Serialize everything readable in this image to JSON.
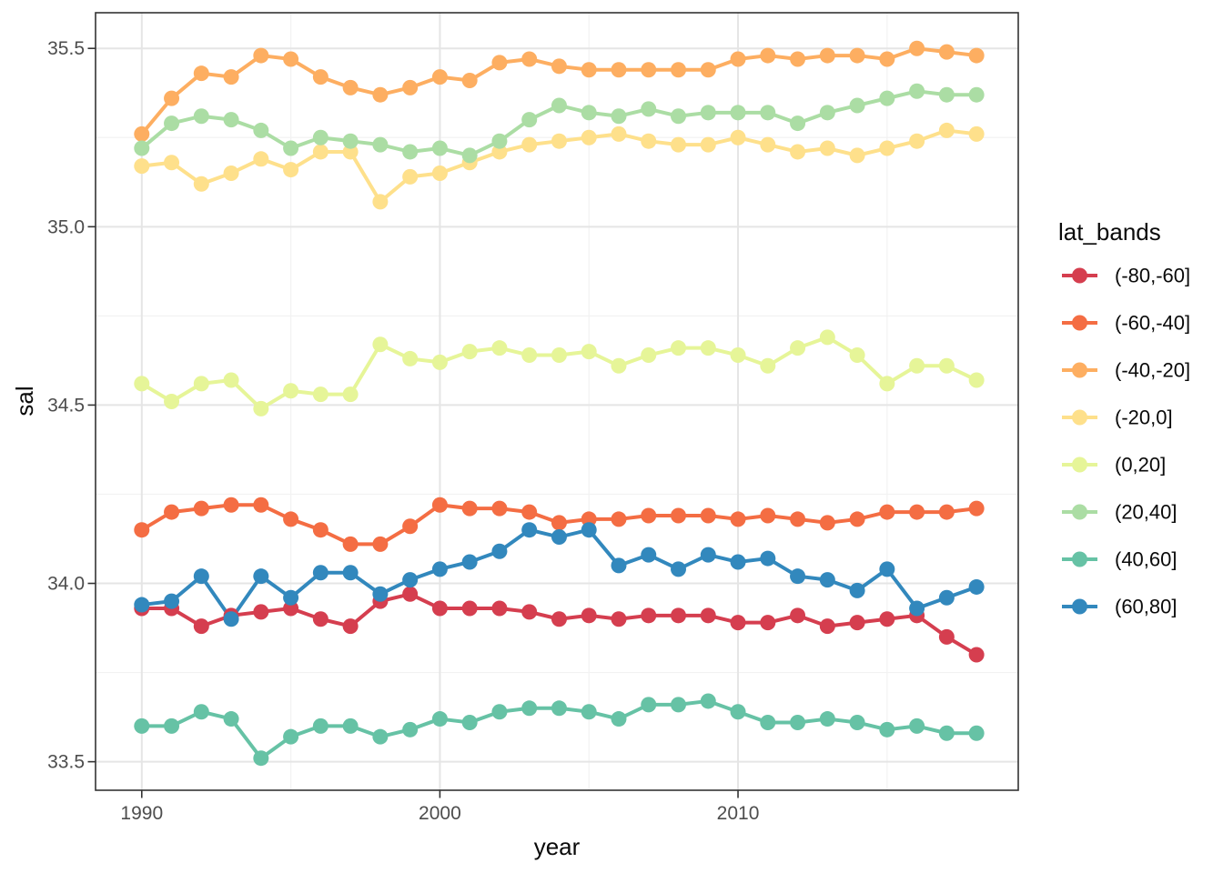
{
  "chart_data": {
    "type": "line",
    "title": "",
    "xlabel": "year",
    "ylabel": "sal",
    "xlim": [
      1988.45,
      2019.4
    ],
    "ylim": [
      33.42,
      35.6
    ],
    "grid": "major+minor",
    "x_ticks": {
      "major": [
        1990,
        2000,
        2010
      ],
      "minor": [
        1995,
        2005,
        2015
      ]
    },
    "y_ticks": {
      "major": [
        33.5,
        34.0,
        34.5,
        35.0,
        35.5
      ],
      "major_labels": [
        "33.5",
        "34.0",
        "34.5",
        "35.0",
        "35.5"
      ],
      "minor": [
        33.75,
        34.25,
        34.75,
        35.25
      ]
    },
    "legend": {
      "title": "lat_bands",
      "position": "right"
    },
    "x": [
      1990,
      1991,
      1992,
      1993,
      1994,
      1995,
      1996,
      1997,
      1998,
      1999,
      2000,
      2001,
      2002,
      2003,
      2004,
      2005,
      2006,
      2007,
      2008,
      2009,
      2010,
      2011,
      2012,
      2013,
      2014,
      2015,
      2016,
      2017,
      2018
    ],
    "series": [
      {
        "name": "(-80,-60]",
        "color": "#D53E4F",
        "values": [
          33.93,
          33.93,
          33.88,
          33.91,
          33.92,
          33.93,
          33.9,
          33.88,
          33.95,
          33.97,
          33.93,
          33.93,
          33.93,
          33.92,
          33.9,
          33.91,
          33.9,
          33.91,
          33.91,
          33.91,
          33.89,
          33.89,
          33.91,
          33.88,
          33.89,
          33.9,
          33.91,
          33.85,
          33.8
        ]
      },
      {
        "name": "(-60,-40]",
        "color": "#F46D43",
        "values": [
          34.15,
          34.2,
          34.21,
          34.22,
          34.22,
          34.18,
          34.15,
          34.11,
          34.11,
          34.16,
          34.22,
          34.21,
          34.21,
          34.2,
          34.17,
          34.18,
          34.18,
          34.19,
          34.19,
          34.19,
          34.18,
          34.19,
          34.18,
          34.17,
          34.18,
          34.2,
          34.2,
          34.2,
          34.21
        ]
      },
      {
        "name": "(-40,-20]",
        "color": "#FDAE61",
        "values": [
          35.26,
          35.36,
          35.43,
          35.42,
          35.48,
          35.47,
          35.42,
          35.39,
          35.37,
          35.39,
          35.42,
          35.41,
          35.46,
          35.47,
          35.45,
          35.44,
          35.44,
          35.44,
          35.44,
          35.44,
          35.47,
          35.48,
          35.47,
          35.48,
          35.48,
          35.47,
          35.5,
          35.49,
          35.48
        ]
      },
      {
        "name": "(-20,0]",
        "color": "#FEE08B",
        "values": [
          35.17,
          35.18,
          35.12,
          35.15,
          35.19,
          35.16,
          35.21,
          35.21,
          35.07,
          35.14,
          35.15,
          35.18,
          35.21,
          35.23,
          35.24,
          35.25,
          35.26,
          35.24,
          35.23,
          35.23,
          35.25,
          35.23,
          35.21,
          35.22,
          35.2,
          35.22,
          35.24,
          35.27,
          35.26
        ]
      },
      {
        "name": "(0,20]",
        "color": "#E6F598",
        "values": [
          34.56,
          34.51,
          34.56,
          34.57,
          34.49,
          34.54,
          34.53,
          34.53,
          34.67,
          34.63,
          34.62,
          34.65,
          34.66,
          34.64,
          34.64,
          34.65,
          34.61,
          34.64,
          34.66,
          34.66,
          34.64,
          34.61,
          34.66,
          34.69,
          34.64,
          34.56,
          34.61,
          34.61,
          34.57
        ]
      },
      {
        "name": "(20,40]",
        "color": "#ABDDA4",
        "values": [
          35.22,
          35.29,
          35.31,
          35.3,
          35.27,
          35.22,
          35.25,
          35.24,
          35.23,
          35.21,
          35.22,
          35.2,
          35.24,
          35.3,
          35.34,
          35.32,
          35.31,
          35.33,
          35.31,
          35.32,
          35.32,
          35.32,
          35.29,
          35.32,
          35.34,
          35.36,
          35.38,
          35.37,
          35.37
        ]
      },
      {
        "name": "(40,60]",
        "color": "#66C2A5",
        "values": [
          33.6,
          33.6,
          33.64,
          33.62,
          33.51,
          33.57,
          33.6,
          33.6,
          33.57,
          33.59,
          33.62,
          33.61,
          33.64,
          33.65,
          33.65,
          33.64,
          33.62,
          33.66,
          33.66,
          33.67,
          33.64,
          33.61,
          33.61,
          33.62,
          33.61,
          33.59,
          33.6,
          33.58,
          33.58
        ]
      },
      {
        "name": "(60,80]",
        "color": "#3288BD",
        "values": [
          33.94,
          33.95,
          34.02,
          33.9,
          34.02,
          33.96,
          34.03,
          34.03,
          33.97,
          34.01,
          34.04,
          34.06,
          34.09,
          34.15,
          34.13,
          34.15,
          34.05,
          34.08,
          34.04,
          34.08,
          34.06,
          34.07,
          34.02,
          34.01,
          33.98,
          34.04,
          33.93,
          33.96,
          33.99
        ]
      }
    ]
  },
  "style": {
    "background": "#FFFFFF",
    "panel_background": "#FFFFFF",
    "panel_border": "#333333",
    "grid_major": "#E5E5E5",
    "grid_minor": "#F2F2F2",
    "tick_color": "#333333",
    "tick_label_color": "#4D4D4D",
    "axis_title_color": "#0A0A0A",
    "legend_text_color": "#0A0A0A"
  }
}
